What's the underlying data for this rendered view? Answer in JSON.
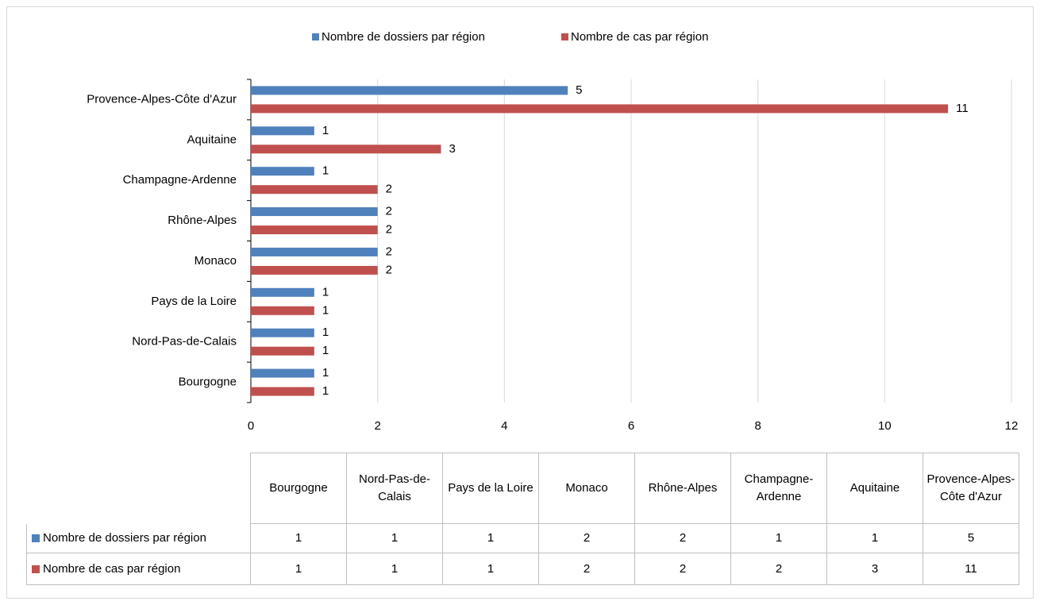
{
  "chart_data": {
    "type": "bar",
    "orientation": "horizontal",
    "categories": [
      "Bourgogne",
      "Nord-Pas-de-Calais",
      "Pays de la Loire",
      "Monaco",
      "Rhône-Alpes",
      "Champagne-Ardenne",
      "Aquitaine",
      "Provence-Alpes-Côte d'Azur"
    ],
    "series": [
      {
        "name": "Nombre de dossiers par région",
        "color": "#4f81bd",
        "values": [
          1,
          1,
          1,
          2,
          2,
          1,
          1,
          5
        ]
      },
      {
        "name": "Nombre de cas par région",
        "color": "#c0504d",
        "values": [
          1,
          1,
          1,
          2,
          2,
          2,
          3,
          11
        ]
      }
    ],
    "xlim": [
      0,
      12
    ],
    "xticks": [
      0,
      2,
      4,
      6,
      8,
      10,
      12
    ],
    "grid": true,
    "legend": "top",
    "data_table": true
  }
}
